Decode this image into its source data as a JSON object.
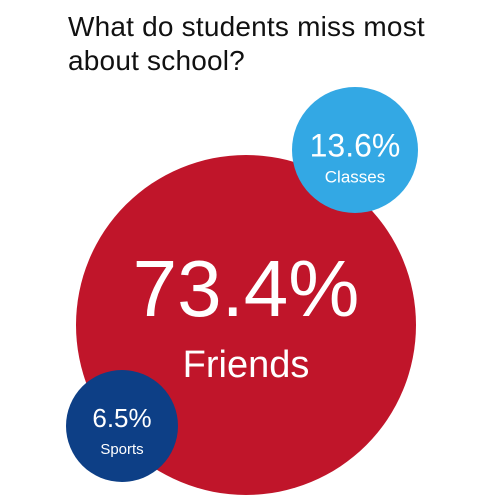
{
  "title": "What do students miss most about school?",
  "colors": {
    "friends": "#c0152a",
    "classes": "#33a8e4",
    "sports": "#0d3f86",
    "label_text": "#ffffff"
  },
  "chart_data": {
    "type": "bubble",
    "title": "What do students miss most about school?",
    "series": [
      {
        "name": "Friends",
        "value": 73.4,
        "label": "73.4%",
        "color": "#c0152a"
      },
      {
        "name": "Classes",
        "value": 13.6,
        "label": "13.6%",
        "color": "#33a8e4"
      },
      {
        "name": "Sports",
        "value": 6.5,
        "label": "6.5%",
        "color": "#0d3f86"
      }
    ]
  }
}
